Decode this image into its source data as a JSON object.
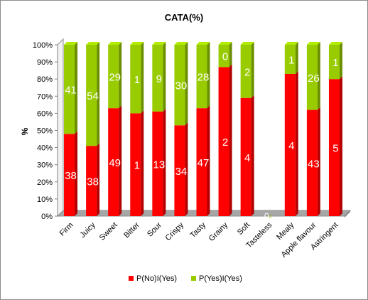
{
  "chart_data": {
    "type": "bar",
    "stacked": true,
    "percent_stacked": true,
    "title": "CATA(%)",
    "xlabel": "",
    "ylabel": "%",
    "ylim": [
      0,
      100
    ],
    "y_ticks": [
      "0%",
      "10%",
      "20%",
      "30%",
      "40%",
      "50%",
      "60%",
      "70%",
      "80%",
      "90%",
      "100%"
    ],
    "grid": false,
    "legend_position": "bottom",
    "categories": [
      "Firm",
      "Juicy",
      "Sweet",
      "Bitter",
      "Sour",
      "Crispy",
      "Tasty",
      "Grainy",
      "Soft",
      "Tasteless",
      "Mealy",
      "Apple flavour",
      "Astringent"
    ],
    "series": [
      {
        "name": "P(No)I(Yes)",
        "color": "#ff0000",
        "values": [
          38,
          38,
          49,
          1,
          13,
          34,
          47,
          2,
          4,
          0,
          4,
          43,
          5
        ],
        "percent": [
          48,
          41,
          63,
          60,
          61,
          53,
          63,
          87,
          69,
          0,
          83,
          62,
          80
        ]
      },
      {
        "name": "P(Yes)I(Yes)",
        "color": "#99cc00",
        "values": [
          41,
          54,
          29,
          1,
          9,
          30,
          28,
          0,
          2,
          0,
          1,
          26,
          1
        ],
        "percent": [
          52,
          59,
          37,
          40,
          39,
          47,
          37,
          13,
          31,
          0,
          17,
          38,
          20
        ]
      }
    ]
  }
}
